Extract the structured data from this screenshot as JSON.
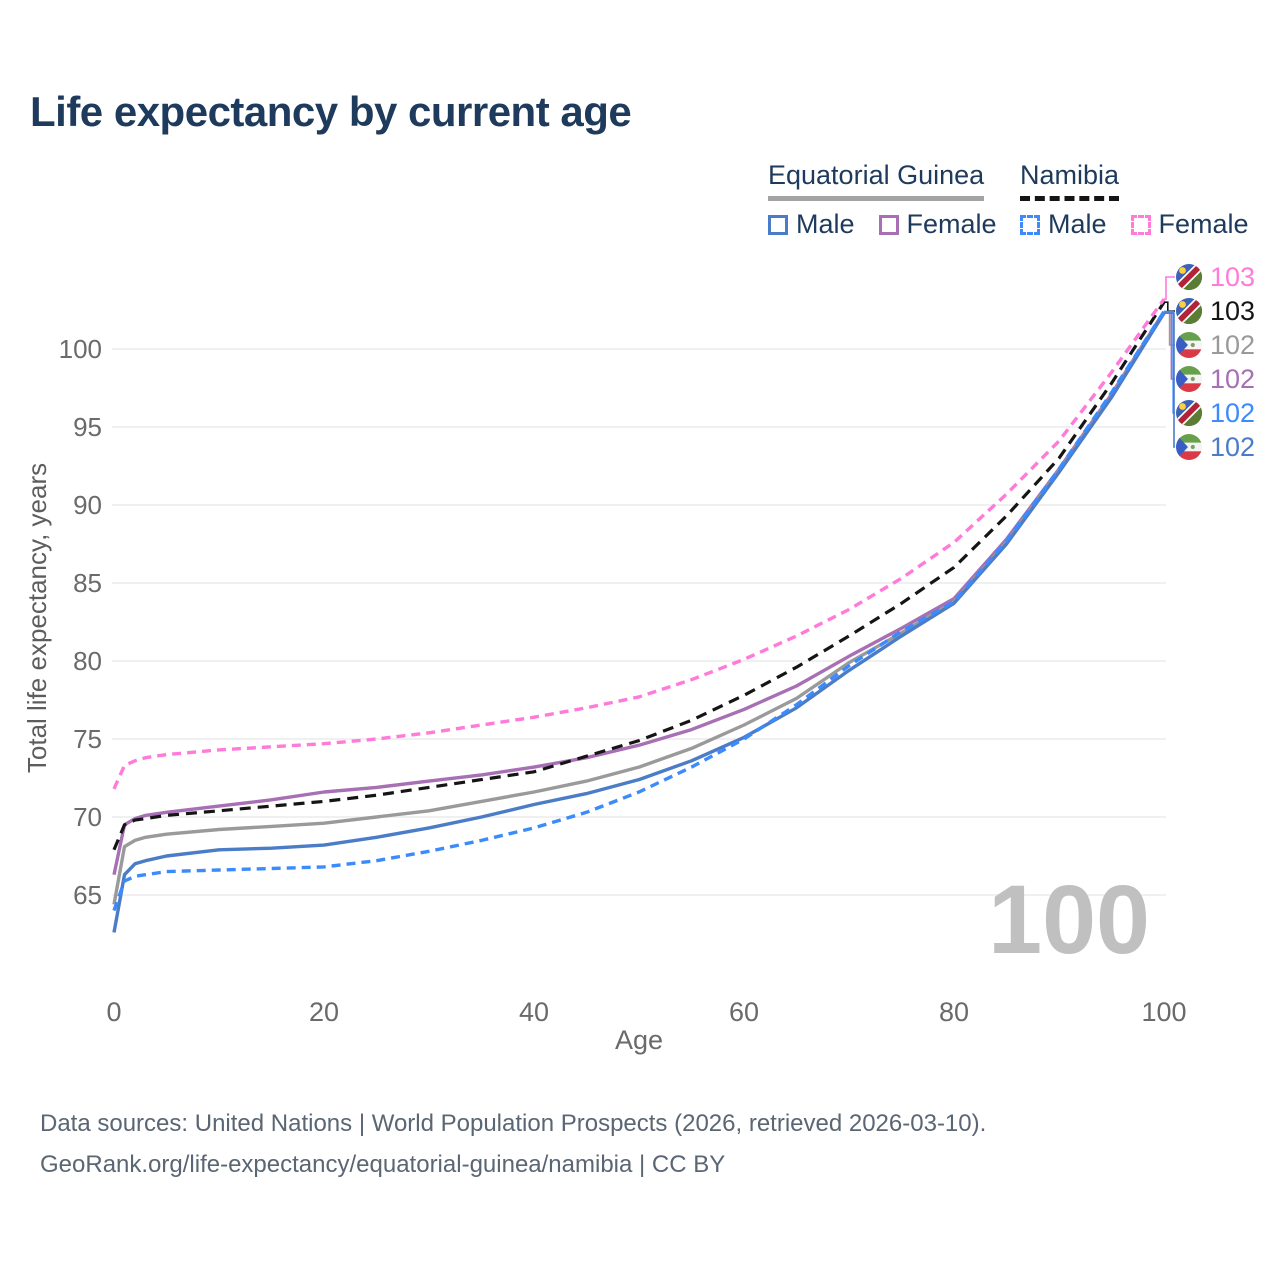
{
  "title": "Life expectancy by current age",
  "legend": {
    "groups": [
      {
        "label": "Equatorial Guinea",
        "items": [
          {
            "label": "Male",
            "series_key": "eg_male"
          },
          {
            "label": "Female",
            "series_key": "eg_female"
          }
        ],
        "underline_series_key": "eg_all"
      },
      {
        "label": "Namibia",
        "items": [
          {
            "label": "Male",
            "series_key": "na_male"
          },
          {
            "label": "Female",
            "series_key": "na_female"
          }
        ],
        "underline_series_key": "na_all"
      }
    ]
  },
  "chart_data": {
    "type": "line",
    "title": "Life expectancy by current age",
    "xlabel": "Age",
    "ylabel": "Total life expectancy, years",
    "xlim": [
      0,
      100
    ],
    "ylim": [
      62,
      104
    ],
    "xticks": [
      0,
      20,
      40,
      60,
      80,
      100
    ],
    "yticks": [
      65,
      70,
      75,
      80,
      85,
      90,
      95,
      100
    ],
    "grid": "horizontal",
    "watermark_current_age": "100",
    "series": [
      {
        "key": "eg_male",
        "name": "Equatorial Guinea Male",
        "color": "#4a7cc7",
        "dashed": false,
        "points": [
          [
            0,
            62.6
          ],
          [
            1,
            66.3
          ],
          [
            2,
            67.0
          ],
          [
            3,
            67.2
          ],
          [
            5,
            67.5
          ],
          [
            10,
            67.9
          ],
          [
            15,
            68.0
          ],
          [
            20,
            68.2
          ],
          [
            25,
            68.7
          ],
          [
            30,
            69.3
          ],
          [
            35,
            70.0
          ],
          [
            40,
            70.8
          ],
          [
            45,
            71.5
          ],
          [
            50,
            72.4
          ],
          [
            55,
            73.6
          ],
          [
            60,
            75.1
          ],
          [
            65,
            77.0
          ],
          [
            70,
            79.4
          ],
          [
            75,
            81.6
          ],
          [
            80,
            83.7
          ],
          [
            85,
            87.5
          ],
          [
            90,
            92.1
          ],
          [
            95,
            96.9
          ],
          [
            100,
            102.3
          ]
        ]
      },
      {
        "key": "eg_female",
        "name": "Equatorial Guinea Female",
        "color": "#a76fb4",
        "dashed": false,
        "points": [
          [
            0,
            66.3
          ],
          [
            1,
            69.5
          ],
          [
            2,
            69.9
          ],
          [
            3,
            70.1
          ],
          [
            5,
            70.3
          ],
          [
            10,
            70.7
          ],
          [
            15,
            71.1
          ],
          [
            20,
            71.6
          ],
          [
            25,
            71.9
          ],
          [
            30,
            72.3
          ],
          [
            35,
            72.7
          ],
          [
            40,
            73.2
          ],
          [
            45,
            73.8
          ],
          [
            50,
            74.6
          ],
          [
            55,
            75.6
          ],
          [
            60,
            76.9
          ],
          [
            65,
            78.4
          ],
          [
            70,
            80.3
          ],
          [
            75,
            82.1
          ],
          [
            80,
            84.0
          ],
          [
            85,
            87.8
          ],
          [
            90,
            92.3
          ],
          [
            95,
            97.1
          ],
          [
            100,
            102.4
          ]
        ]
      },
      {
        "key": "eg_all",
        "name": "Equatorial Guinea",
        "color": "#9a9a9a",
        "dashed": false,
        "points": [
          [
            0,
            64.4
          ],
          [
            1,
            68.1
          ],
          [
            2,
            68.5
          ],
          [
            3,
            68.7
          ],
          [
            5,
            68.9
          ],
          [
            10,
            69.2
          ],
          [
            15,
            69.4
          ],
          [
            20,
            69.6
          ],
          [
            25,
            70.0
          ],
          [
            30,
            70.4
          ],
          [
            35,
            71.0
          ],
          [
            40,
            71.6
          ],
          [
            45,
            72.3
          ],
          [
            50,
            73.2
          ],
          [
            55,
            74.4
          ],
          [
            60,
            75.9
          ],
          [
            65,
            77.6
          ],
          [
            70,
            79.9
          ],
          [
            75,
            81.8
          ],
          [
            80,
            83.8
          ],
          [
            85,
            87.6
          ],
          [
            90,
            92.2
          ],
          [
            95,
            97.0
          ],
          [
            100,
            102.3
          ]
        ]
      },
      {
        "key": "na_male",
        "name": "Namibia Male",
        "color": "#3c8bfd",
        "dashed": true,
        "points": [
          [
            0,
            64.0
          ],
          [
            1,
            65.9
          ],
          [
            2,
            66.2
          ],
          [
            3,
            66.3
          ],
          [
            5,
            66.5
          ],
          [
            10,
            66.6
          ],
          [
            15,
            66.7
          ],
          [
            20,
            66.8
          ],
          [
            25,
            67.2
          ],
          [
            30,
            67.8
          ],
          [
            35,
            68.5
          ],
          [
            40,
            69.3
          ],
          [
            45,
            70.3
          ],
          [
            50,
            71.6
          ],
          [
            55,
            73.2
          ],
          [
            60,
            75.0
          ],
          [
            65,
            77.2
          ],
          [
            70,
            79.7
          ],
          [
            75,
            81.9
          ],
          [
            80,
            83.8
          ],
          [
            85,
            87.7
          ],
          [
            90,
            92.3
          ],
          [
            95,
            97.2
          ],
          [
            100,
            102.4
          ]
        ]
      },
      {
        "key": "na_female",
        "name": "Namibia Female",
        "color": "#ff7ad9",
        "dashed": true,
        "points": [
          [
            0,
            71.8
          ],
          [
            1,
            73.3
          ],
          [
            2,
            73.6
          ],
          [
            3,
            73.8
          ],
          [
            5,
            74.0
          ],
          [
            10,
            74.3
          ],
          [
            15,
            74.5
          ],
          [
            20,
            74.7
          ],
          [
            25,
            75.0
          ],
          [
            30,
            75.4
          ],
          [
            35,
            75.9
          ],
          [
            40,
            76.4
          ],
          [
            45,
            77.0
          ],
          [
            50,
            77.7
          ],
          [
            55,
            78.8
          ],
          [
            60,
            80.1
          ],
          [
            65,
            81.6
          ],
          [
            70,
            83.3
          ],
          [
            75,
            85.3
          ],
          [
            80,
            87.6
          ],
          [
            85,
            90.7
          ],
          [
            90,
            94.1
          ],
          [
            95,
            98.5
          ],
          [
            100,
            103.2
          ]
        ]
      },
      {
        "key": "na_all",
        "name": "Namibia",
        "color": "#151515",
        "dashed": true,
        "points": [
          [
            0,
            67.9
          ],
          [
            1,
            69.5
          ],
          [
            2,
            69.8
          ],
          [
            3,
            69.9
          ],
          [
            5,
            70.1
          ],
          [
            10,
            70.4
          ],
          [
            15,
            70.7
          ],
          [
            20,
            71.0
          ],
          [
            25,
            71.4
          ],
          [
            30,
            71.9
          ],
          [
            35,
            72.4
          ],
          [
            40,
            72.9
          ],
          [
            45,
            73.9
          ],
          [
            50,
            74.9
          ],
          [
            55,
            76.2
          ],
          [
            60,
            77.8
          ],
          [
            65,
            79.6
          ],
          [
            70,
            81.6
          ],
          [
            75,
            83.7
          ],
          [
            80,
            86.0
          ],
          [
            85,
            89.3
          ],
          [
            90,
            93.0
          ],
          [
            95,
            97.8
          ],
          [
            100,
            103.0
          ]
        ]
      }
    ],
    "end_labels": [
      {
        "flag": "namibia",
        "value": "103",
        "color": "#ff7ad9",
        "series_key": "na_female"
      },
      {
        "flag": "namibia",
        "value": "103",
        "color": "#151515",
        "series_key": "na_all"
      },
      {
        "flag": "equatorial-guinea",
        "value": "102",
        "color": "#9a9a9a",
        "series_key": "eg_all"
      },
      {
        "flag": "equatorial-guinea",
        "value": "102",
        "color": "#a76fb4",
        "series_key": "eg_female"
      },
      {
        "flag": "namibia",
        "value": "102",
        "color": "#3c8bfd",
        "series_key": "na_male"
      },
      {
        "flag": "equatorial-guinea",
        "value": "102",
        "color": "#4a7cc7",
        "series_key": "eg_male"
      }
    ]
  },
  "footer": {
    "line1": "Data sources: United Nations | World Population Prospects (2026, retrieved 2026-03-10).",
    "line2": "GeoRank.org/life-expectancy/equatorial-guinea/namibia | CC BY"
  }
}
